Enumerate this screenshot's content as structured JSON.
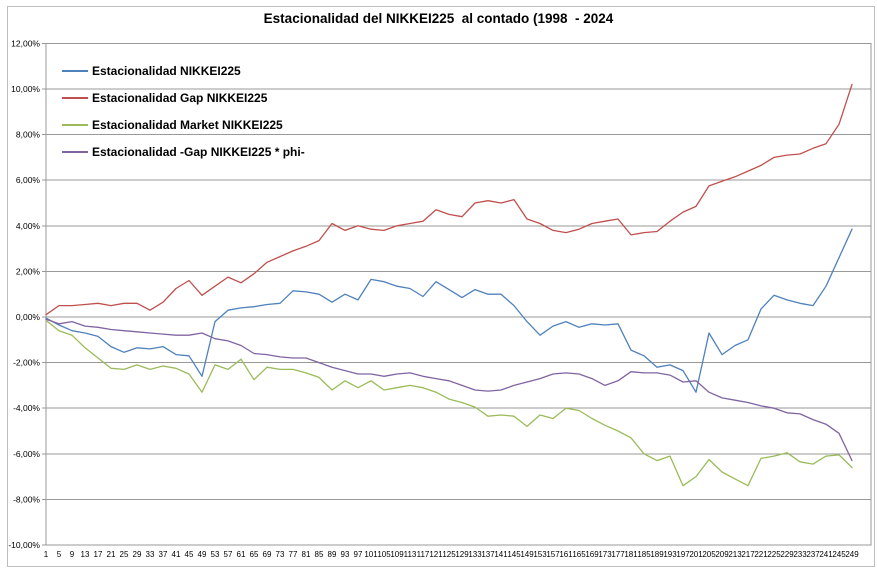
{
  "chart_data": {
    "type": "line",
    "title": "Estacionalidad del NIKKEI225  al contado (1998  - 2024",
    "units": "percent",
    "x_range": [
      1,
      249
    ],
    "ylim": [
      -10,
      12
    ],
    "grid": true,
    "legend_position": "inside top-left",
    "x": [
      1,
      5,
      9,
      13,
      17,
      21,
      25,
      29,
      33,
      37,
      41,
      45,
      49,
      53,
      57,
      61,
      65,
      69,
      73,
      77,
      81,
      85,
      89,
      93,
      97,
      101,
      105,
      109,
      113,
      117,
      121,
      125,
      129,
      133,
      137,
      141,
      145,
      149,
      153,
      157,
      161,
      165,
      169,
      173,
      177,
      181,
      185,
      189,
      193,
      197,
      201,
      205,
      209,
      213,
      217,
      221,
      225,
      229,
      233,
      237,
      241,
      245,
      249
    ],
    "y_tick_values": [
      12,
      10,
      8,
      6,
      4,
      2,
      0,
      -2,
      -4,
      -6,
      -8,
      -10
    ],
    "y_tick_labels": [
      "12,00%",
      "10,00%",
      "8,00%",
      "6,00%",
      "4,00%",
      "2,00%",
      "0,00%",
      "-2,00%",
      "-4,00%",
      "-6,00%",
      "-8,00%",
      "-10,00%"
    ],
    "series": [
      {
        "name": "Estacionalidad NIKKEI225",
        "color": "#4F81BD",
        "values": [
          -0.05,
          -0.35,
          -0.6,
          -0.7,
          -0.85,
          -1.3,
          -1.55,
          -1.35,
          -1.4,
          -1.3,
          -1.65,
          -1.7,
          -2.6,
          -0.2,
          0.3,
          0.4,
          0.45,
          0.55,
          0.6,
          1.15,
          1.1,
          1.0,
          0.65,
          1.0,
          0.75,
          1.65,
          1.55,
          1.35,
          1.25,
          0.9,
          1.55,
          1.2,
          0.85,
          1.2,
          1.0,
          1.0,
          0.5,
          -0.2,
          -0.8,
          -0.4,
          -0.2,
          -0.45,
          -0.3,
          -0.35,
          -0.3,
          -1.45,
          -1.7,
          -2.2,
          -2.1,
          -2.35,
          -3.3,
          -0.7,
          -1.65,
          -1.25,
          -1.0,
          0.35,
          0.95,
          0.75,
          0.6,
          0.5,
          1.35,
          2.6,
          3.85
        ]
      },
      {
        "name": "Estacionalidad Gap NIKKEI225",
        "color": "#C0504D",
        "values": [
          0.1,
          0.5,
          0.5,
          0.55,
          0.6,
          0.5,
          0.6,
          0.6,
          0.3,
          0.65,
          1.25,
          1.6,
          0.95,
          1.35,
          1.75,
          1.5,
          1.9,
          2.4,
          2.65,
          2.9,
          3.1,
          3.35,
          4.1,
          3.8,
          4.0,
          3.85,
          3.8,
          4.0,
          4.1,
          4.2,
          4.7,
          4.5,
          4.4,
          5.0,
          5.1,
          5.0,
          5.15,
          4.3,
          4.1,
          3.8,
          3.7,
          3.85,
          4.1,
          4.2,
          4.3,
          3.6,
          3.7,
          3.75,
          4.2,
          4.6,
          4.85,
          5.75,
          5.95,
          6.15,
          6.4,
          6.65,
          7.0,
          7.1,
          7.15,
          7.4,
          7.6,
          8.45,
          10.2
        ]
      },
      {
        "name": "Estacionalidad Market NIKKEI225",
        "color": "#9BBB59",
        "values": [
          -0.15,
          -0.6,
          -0.8,
          -1.35,
          -1.8,
          -2.25,
          -2.3,
          -2.1,
          -2.3,
          -2.15,
          -2.25,
          -2.5,
          -3.3,
          -2.1,
          -2.3,
          -1.85,
          -2.75,
          -2.2,
          -2.3,
          -2.3,
          -2.45,
          -2.65,
          -3.2,
          -2.8,
          -3.1,
          -2.8,
          -3.2,
          -3.1,
          -3.0,
          -3.1,
          -3.3,
          -3.6,
          -3.75,
          -3.95,
          -4.35,
          -4.3,
          -4.35,
          -4.8,
          -4.3,
          -4.45,
          -4.0,
          -4.1,
          -4.45,
          -4.75,
          -5.0,
          -5.3,
          -6.0,
          -6.3,
          -6.1,
          -7.4,
          -7.0,
          -6.25,
          -6.8,
          -7.1,
          -7.4,
          -6.2,
          -6.1,
          -5.95,
          -6.35,
          -6.45,
          -6.1,
          -6.05,
          -6.6
        ]
      },
      {
        "name": "Estacionalidad -Gap NIKKEI225 * phi-",
        "color": "#8064A2",
        "values": [
          -0.1,
          -0.3,
          -0.2,
          -0.4,
          -0.45,
          -0.55,
          -0.6,
          -0.65,
          -0.7,
          -0.75,
          -0.8,
          -0.8,
          -0.7,
          -0.95,
          -1.05,
          -1.25,
          -1.6,
          -1.65,
          -1.75,
          -1.8,
          -1.8,
          -2.0,
          -2.2,
          -2.35,
          -2.5,
          -2.5,
          -2.6,
          -2.5,
          -2.45,
          -2.6,
          -2.7,
          -2.8,
          -3.0,
          -3.2,
          -3.25,
          -3.2,
          -3.0,
          -2.85,
          -2.7,
          -2.5,
          -2.45,
          -2.5,
          -2.7,
          -3.0,
          -2.8,
          -2.4,
          -2.45,
          -2.45,
          -2.55,
          -2.85,
          -2.8,
          -3.3,
          -3.55,
          -3.65,
          -3.75,
          -3.9,
          -4.0,
          -4.2,
          -4.25,
          -4.5,
          -4.7,
          -5.1,
          -6.3
        ]
      }
    ],
    "colors": {
      "gridline": "#999999",
      "frame": "#999999",
      "text": "#000000"
    }
  }
}
